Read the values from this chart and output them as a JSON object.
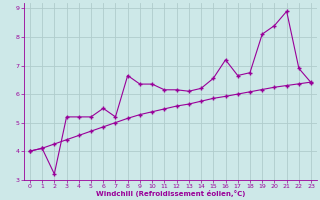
{
  "xlabel": "Windchill (Refroidissement éolien,°C)",
  "bg_color": "#cde8e8",
  "line_color": "#990099",
  "grid_color": "#b0cccc",
  "xlim": [
    -0.5,
    23.5
  ],
  "ylim": [
    3,
    9.2
  ],
  "xticks": [
    0,
    1,
    2,
    3,
    4,
    5,
    6,
    7,
    8,
    9,
    10,
    11,
    12,
    13,
    14,
    15,
    16,
    17,
    18,
    19,
    20,
    21,
    22,
    23
  ],
  "yticks": [
    3,
    4,
    5,
    6,
    7,
    8,
    9
  ],
  "line1_x": [
    0,
    1,
    2,
    3,
    4,
    5,
    6,
    7,
    8,
    9,
    10,
    11,
    12,
    13,
    14,
    15,
    16,
    17,
    18,
    19,
    20,
    21,
    22,
    23
  ],
  "line1_y": [
    4.0,
    4.1,
    3.2,
    5.2,
    5.2,
    5.2,
    5.5,
    5.2,
    6.65,
    6.35,
    6.35,
    6.15,
    6.15,
    6.1,
    6.2,
    6.55,
    7.2,
    6.65,
    6.75,
    8.1,
    8.4,
    8.9,
    6.9,
    6.4
  ],
  "line2_x": [
    0,
    1,
    2,
    3,
    4,
    5,
    6,
    7,
    8,
    9,
    10,
    11,
    12,
    13,
    14,
    15,
    16,
    17,
    18,
    19,
    20,
    21,
    22,
    23
  ],
  "line2_y": [
    4.0,
    4.1,
    4.25,
    4.4,
    4.55,
    4.7,
    4.85,
    5.0,
    5.15,
    5.28,
    5.38,
    5.48,
    5.58,
    5.65,
    5.75,
    5.85,
    5.92,
    6.0,
    6.08,
    6.16,
    6.24,
    6.3,
    6.36,
    6.42
  ]
}
